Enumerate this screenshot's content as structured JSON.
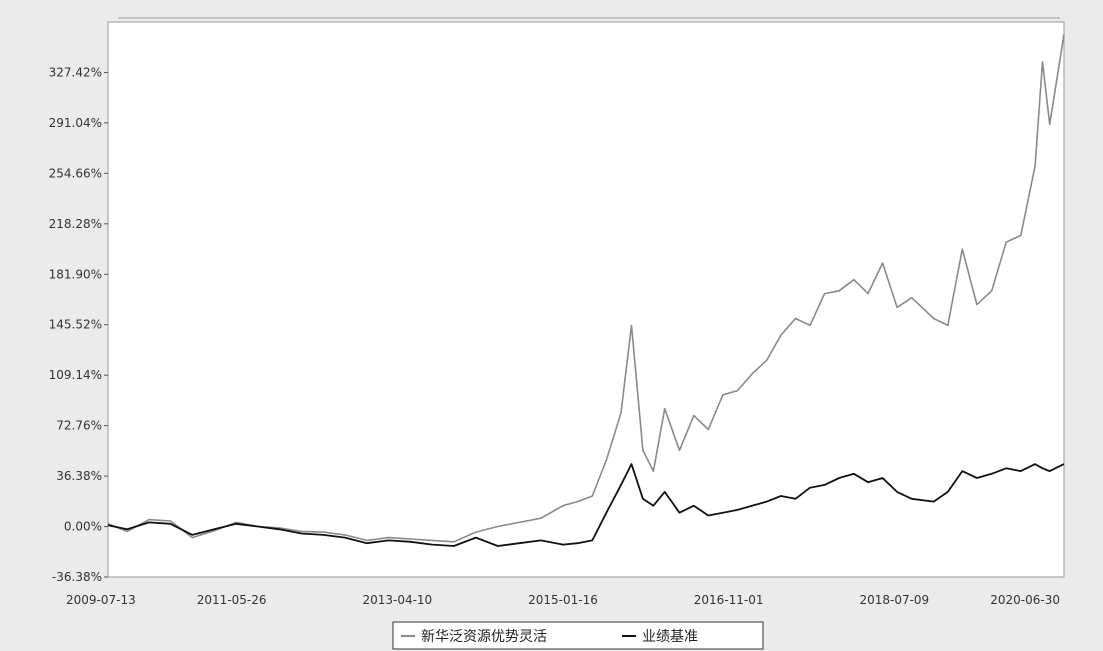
{
  "chart_data": {
    "type": "line",
    "title": "",
    "xlabel": "",
    "ylabel": "",
    "x_tick_labels": [
      "2009-07-13",
      "2011-05-26",
      "2013-04-10",
      "2015-01-16",
      "2016-11-01",
      "2018-07-09",
      "2020-06-30"
    ],
    "y_tick_labels": [
      "-36.38%",
      "0.00%",
      "36.38%",
      "72.76%",
      "109.14%",
      "145.52%",
      "181.90%",
      "218.28%",
      "254.66%",
      "291.04%",
      "327.42%"
    ],
    "y_ticks": [
      -36.38,
      0.0,
      36.38,
      72.76,
      109.14,
      145.52,
      181.9,
      218.28,
      254.66,
      291.04,
      327.42
    ],
    "ylim": [
      -36.38,
      363.8
    ],
    "x_range": [
      "2009-07-13",
      "2020-06-30"
    ],
    "grid": false,
    "legend_position": "bottom",
    "series": [
      {
        "name": "新华泛资源优势灵活",
        "color": "#8a8a8a",
        "x": [
          "2009-07-13",
          "2009-10-01",
          "2010-01-01",
          "2010-04-01",
          "2010-07-01",
          "2010-10-01",
          "2011-01-01",
          "2011-04-01",
          "2011-07-01",
          "2011-10-01",
          "2012-01-01",
          "2012-04-01",
          "2012-07-01",
          "2012-10-01",
          "2013-01-01",
          "2013-04-01",
          "2013-07-01",
          "2013-10-01",
          "2014-01-01",
          "2014-04-01",
          "2014-07-01",
          "2014-10-01",
          "2014-12-01",
          "2015-02-01",
          "2015-04-01",
          "2015-06-01",
          "2015-07-15",
          "2015-09-01",
          "2015-10-15",
          "2015-12-01",
          "2016-02-01",
          "2016-04-01",
          "2016-06-01",
          "2016-08-01",
          "2016-10-01",
          "2016-12-01",
          "2017-02-01",
          "2017-04-01",
          "2017-06-01",
          "2017-08-01",
          "2017-10-01",
          "2017-12-01",
          "2018-02-01",
          "2018-04-01",
          "2018-06-01",
          "2018-08-01",
          "2018-10-01",
          "2019-01-01",
          "2019-03-01",
          "2019-05-01",
          "2019-07-01",
          "2019-09-01",
          "2019-11-01",
          "2020-01-01",
          "2020-03-01",
          "2020-04-01",
          "2020-05-01",
          "2020-06-30"
        ],
        "values": [
          2.0,
          -3.5,
          5.0,
          4.0,
          -8.0,
          -3.0,
          3.0,
          0.0,
          -1.0,
          -3.5,
          -4.0,
          -6.0,
          -10.0,
          -8.0,
          -9.0,
          -10.0,
          -11.0,
          -4.0,
          0.0,
          3.0,
          6.0,
          15.0,
          18.0,
          22.0,
          48.0,
          82.0,
          145.0,
          55.0,
          40.0,
          85.0,
          55.0,
          80.0,
          70.0,
          95.0,
          98.0,
          110.0,
          120.0,
          138.0,
          150.0,
          145.0,
          168.0,
          170.0,
          178.0,
          168.0,
          190.0,
          158.0,
          165.0,
          150.0,
          145.0,
          200.0,
          160.0,
          170.0,
          205.0,
          210.0,
          260.0,
          335.0,
          290.0,
          355.0
        ]
      },
      {
        "name": "业绩基准",
        "color": "#111111",
        "x": [
          "2009-07-13",
          "2009-10-01",
          "2010-01-01",
          "2010-04-01",
          "2010-07-01",
          "2010-10-01",
          "2011-01-01",
          "2011-04-01",
          "2011-07-01",
          "2011-10-01",
          "2012-01-01",
          "2012-04-01",
          "2012-07-01",
          "2012-10-01",
          "2013-01-01",
          "2013-04-01",
          "2013-07-01",
          "2013-10-01",
          "2014-01-01",
          "2014-04-01",
          "2014-07-01",
          "2014-10-01",
          "2014-12-01",
          "2015-02-01",
          "2015-04-01",
          "2015-06-01",
          "2015-07-15",
          "2015-09-01",
          "2015-10-15",
          "2015-12-01",
          "2016-02-01",
          "2016-04-01",
          "2016-06-01",
          "2016-08-01",
          "2016-10-01",
          "2016-12-01",
          "2017-02-01",
          "2017-04-01",
          "2017-06-01",
          "2017-08-01",
          "2017-10-01",
          "2017-12-01",
          "2018-02-01",
          "2018-04-01",
          "2018-06-01",
          "2018-08-01",
          "2018-10-01",
          "2019-01-01",
          "2019-03-01",
          "2019-05-01",
          "2019-07-01",
          "2019-09-01",
          "2019-11-01",
          "2020-01-01",
          "2020-03-01",
          "2020-04-01",
          "2020-05-01",
          "2020-06-30"
        ],
        "values": [
          1.0,
          -2.0,
          3.0,
          2.0,
          -6.0,
          -2.0,
          2.0,
          0.0,
          -2.0,
          -5.0,
          -6.0,
          -8.0,
          -12.0,
          -10.0,
          -11.0,
          -13.0,
          -14.0,
          -8.0,
          -14.0,
          -12.0,
          -10.0,
          -13.0,
          -12.0,
          -10.0,
          10.0,
          30.0,
          45.0,
          20.0,
          15.0,
          25.0,
          10.0,
          15.0,
          8.0,
          10.0,
          12.0,
          15.0,
          18.0,
          22.0,
          20.0,
          28.0,
          30.0,
          35.0,
          38.0,
          32.0,
          35.0,
          25.0,
          20.0,
          18.0,
          25.0,
          40.0,
          35.0,
          38.0,
          42.0,
          40.0,
          45.0,
          42.0,
          40.0,
          45.0
        ]
      }
    ]
  }
}
